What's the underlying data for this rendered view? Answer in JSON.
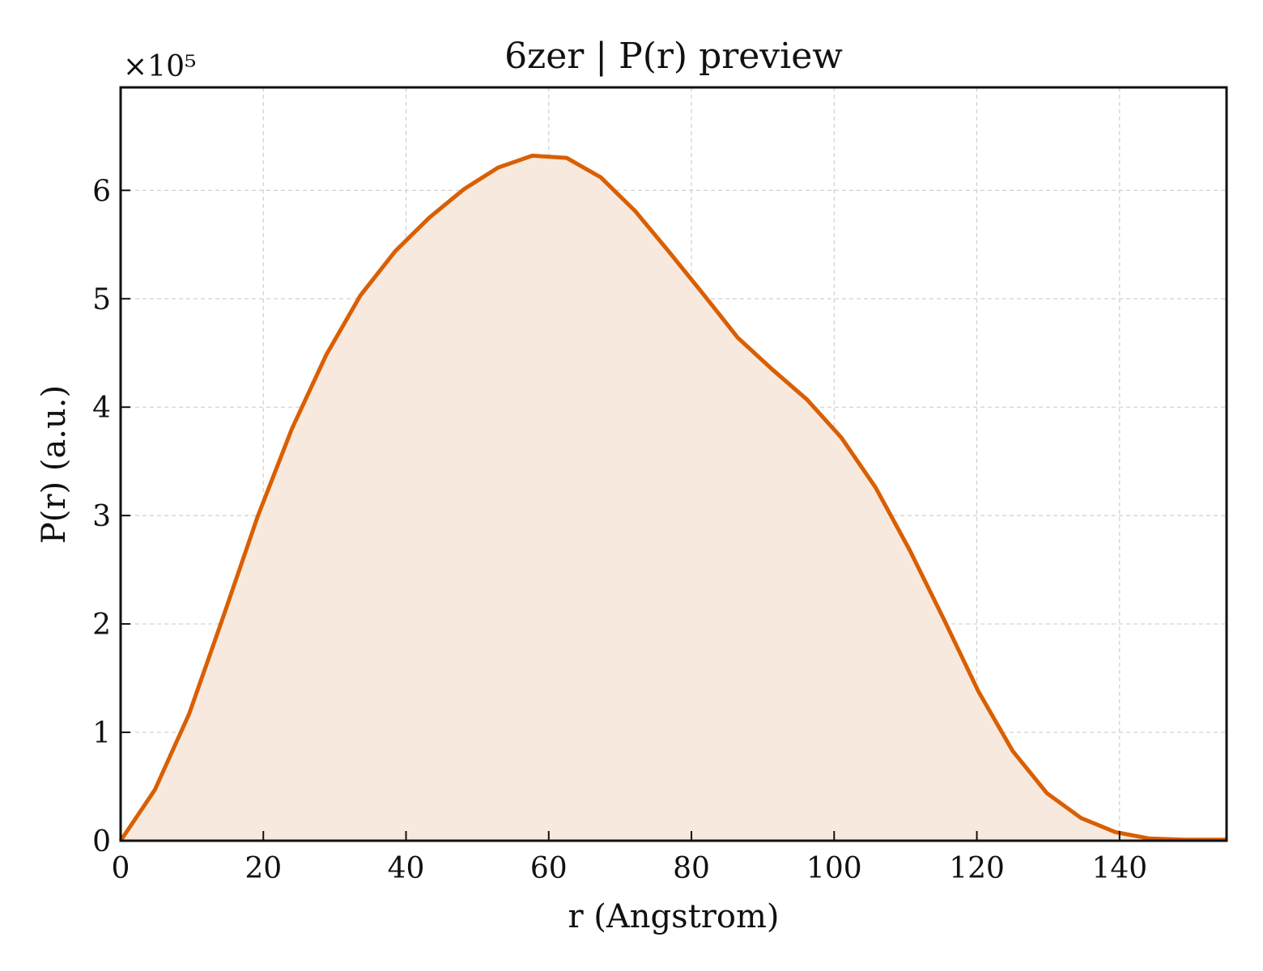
{
  "chart_data": {
    "type": "area",
    "title": "6zer | P(r) preview",
    "xlabel": "r (Angstrom)",
    "ylabel": "P(r) (a.u.)",
    "y_multiplier_label": "×10⁵",
    "xlim": [
      0,
      155
    ],
    "ylim": [
      0,
      6.95
    ],
    "xticks": [
      0,
      20,
      40,
      60,
      80,
      100,
      120,
      140
    ],
    "yticks": [
      0,
      1,
      2,
      3,
      4,
      5,
      6
    ],
    "grid": true,
    "series": [
      {
        "x": [
          0,
          4.8,
          9.6,
          14.4,
          19.2,
          24.0,
          28.8,
          33.6,
          38.5,
          43.3,
          48.1,
          52.9,
          57.7,
          62.5,
          67.3,
          72.1,
          76.9,
          81.7,
          86.5,
          91.3,
          96.2,
          101.0,
          105.8,
          110.6,
          115.4,
          120.2,
          125.0,
          129.8,
          134.6,
          139.4,
          144.2,
          149.0,
          155.0
        ],
        "values": [
          0,
          0.47,
          1.17,
          2.07,
          2.99,
          3.8,
          4.48,
          5.03,
          5.44,
          5.75,
          6.01,
          6.21,
          6.32,
          6.3,
          6.12,
          5.81,
          5.43,
          5.04,
          4.64,
          4.35,
          4.07,
          3.72,
          3.26,
          2.68,
          2.04,
          1.38,
          0.83,
          0.44,
          0.21,
          0.08,
          0.02,
          0.01,
          0.01
        ]
      }
    ],
    "colors": {
      "line": "#d95f02",
      "fill": "#f8e9df",
      "grid": "#cfcfcf",
      "axis": "#111111"
    }
  }
}
